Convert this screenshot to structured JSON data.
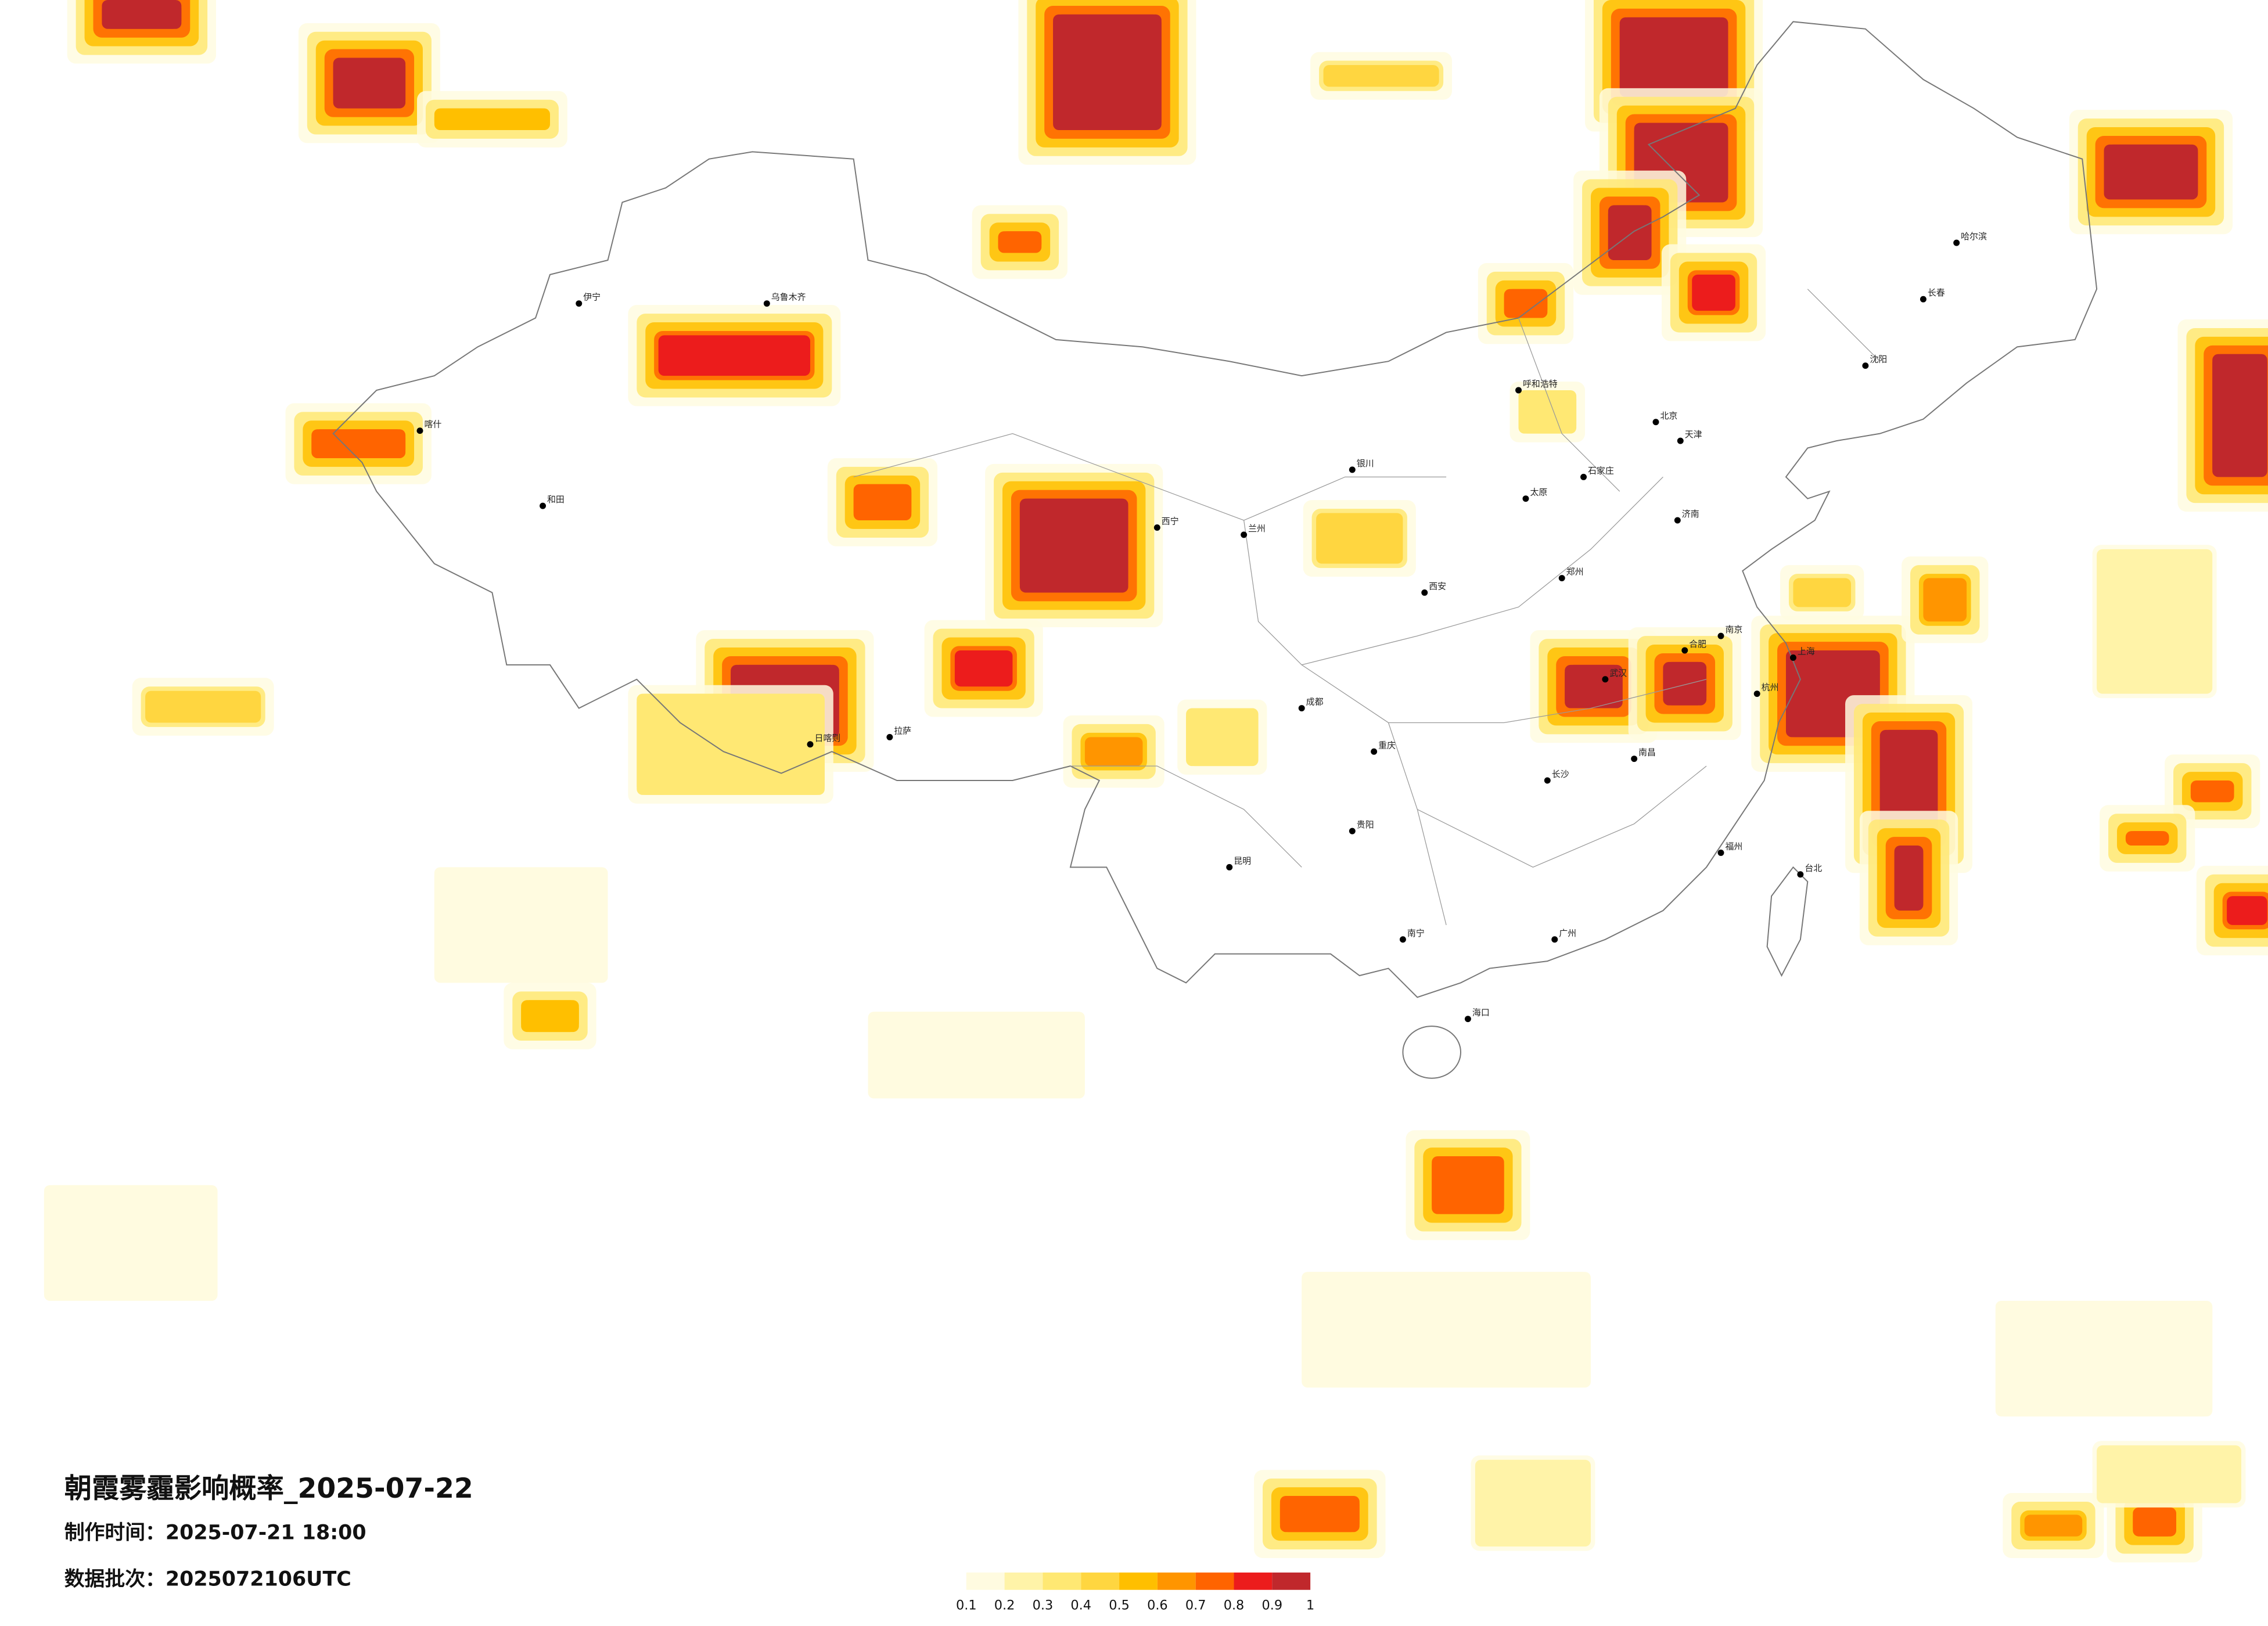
{
  "header": {
    "title": "朝霞雾霾影响概率_2025-07-22",
    "made_time": "制作时间：2025-07-21 18:00",
    "batch": "数据批次：2025072106UTC"
  },
  "legend": {
    "colors": [
      "#fffbe0",
      "#fff3a8",
      "#ffe873",
      "#ffd640",
      "#ffbf00",
      "#ff9500",
      "#ff6400",
      "#ec1c1c",
      "#c0282c"
    ],
    "ticks": [
      0.1,
      0.2,
      0.3,
      0.4,
      0.5,
      0.6,
      0.7,
      0.8,
      0.9,
      1
    ]
  },
  "cities": [
    "哈尔滨",
    "长春",
    "沈阳",
    "北京",
    "天津",
    "石家庄",
    "太原",
    "呼和浩特",
    "济南",
    "郑州",
    "西安",
    "兰州",
    "西宁",
    "银川",
    "乌鲁木齐",
    "拉萨",
    "成都",
    "重庆",
    "武汉",
    "南京",
    "上海",
    "杭州",
    "合肥",
    "长沙",
    "南昌",
    "福州",
    "台北",
    "广州",
    "南宁",
    "海口",
    "贵阳",
    "昆明",
    "和田",
    "喀什",
    "伊宁",
    "日喀则"
  ]
}
